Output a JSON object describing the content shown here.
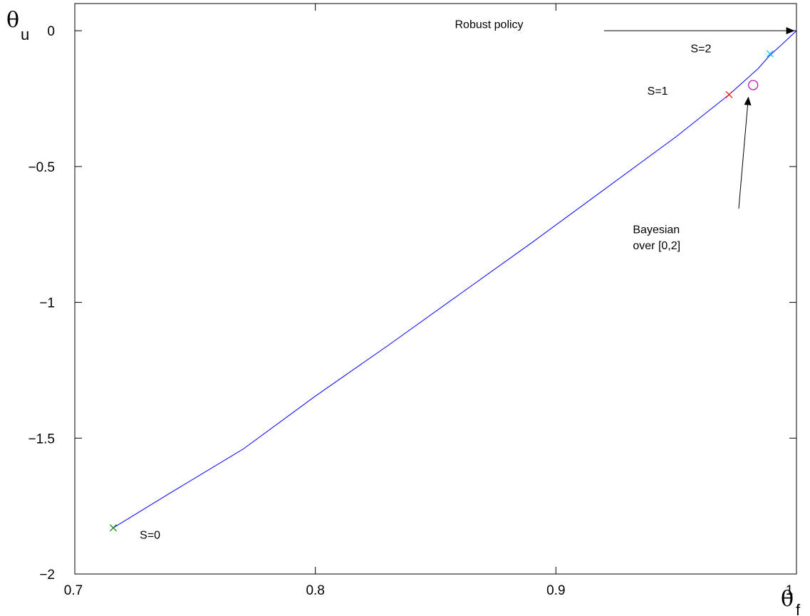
{
  "chart_data": {
    "type": "line",
    "title": "",
    "xlabel": {
      "symbol": "θ",
      "subscript": "f"
    },
    "ylabel": {
      "symbol": "θ",
      "subscript": "u"
    },
    "xlim": [
      0.7,
      1.0
    ],
    "ylim": [
      -2,
      0.1
    ],
    "xticks": [
      {
        "value": 0.7,
        "label": "0.7"
      },
      {
        "value": 0.8,
        "label": "0.8"
      },
      {
        "value": 0.9,
        "label": "0.9"
      },
      {
        "value": 1.0,
        "label": "1"
      }
    ],
    "yticks": [
      {
        "value": 0,
        "label": "0"
      },
      {
        "value": -0.5,
        "label": "−0.5"
      },
      {
        "value": -1,
        "label": "−1"
      },
      {
        "value": -1.5,
        "label": "−1.5"
      },
      {
        "value": -2,
        "label": "−2"
      }
    ],
    "grid": false,
    "series": [
      {
        "color": "#0000ff",
        "x": [
          0.716,
          0.74,
          0.77,
          0.8,
          0.83,
          0.86,
          0.89,
          0.92,
          0.95,
          0.972,
          0.984,
          0.989,
          0.994,
          1.0
        ],
        "y": [
          -1.83,
          -1.7,
          -1.54,
          -1.345,
          -1.16,
          -0.97,
          -0.78,
          -0.585,
          -0.39,
          -0.235,
          -0.14,
          -0.09,
          -0.05,
          0.0
        ]
      }
    ],
    "markers": [
      {
        "name": "S=0",
        "x": 0.716,
        "y": -1.83,
        "symbol": "x",
        "color": "#008000"
      },
      {
        "name": "S=1",
        "x": 0.972,
        "y": -0.235,
        "symbol": "x",
        "color": "#ff0000"
      },
      {
        "name": "S=2",
        "x": 0.989,
        "y": -0.085,
        "symbol": "x",
        "color": "#00bfff"
      },
      {
        "name": "Bayesian",
        "x": 0.982,
        "y": -0.2,
        "symbol": "o",
        "color": "#bf00bf"
      }
    ],
    "annotations": [
      {
        "text": "S=0",
        "x": 0.727,
        "y": -1.87
      },
      {
        "text": "S=1",
        "x": 0.938,
        "y": -0.235
      },
      {
        "text": "S=2",
        "x": 0.956,
        "y": -0.08
      },
      {
        "text": "Robust policy",
        "x": 0.858,
        "y": 0.01
      },
      {
        "text": "Bayesian",
        "x": 0.932,
        "y": -0.745
      },
      {
        "text": "over [0,2]",
        "x": 0.932,
        "y": -0.805
      }
    ],
    "arrows": [
      {
        "from": [
          0.92,
          0.0
        ],
        "to": [
          0.999,
          0.0
        ]
      },
      {
        "from": [
          0.976,
          -0.655
        ],
        "to": [
          0.98,
          -0.245
        ]
      }
    ]
  }
}
